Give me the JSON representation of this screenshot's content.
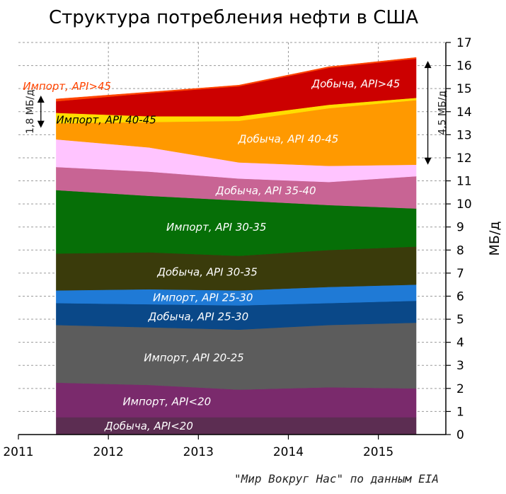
{
  "chart_data": {
    "type": "area",
    "stacked": true,
    "title": "Структура потребления нефти в США",
    "ylabel": "МБ/д",
    "xlabel": "",
    "source_note": "\"Мир Вокруг Нас\" по данным EIA",
    "xlim": [
      2011,
      2015.75
    ],
    "ylim": [
      0,
      17
    ],
    "x_ticks": [
      "2011",
      "2012",
      "2013",
      "2014",
      "2015"
    ],
    "y_ticks": [
      "0",
      "1",
      "2",
      "3",
      "4",
      "5",
      "6",
      "7",
      "8",
      "9",
      "10",
      "11",
      "12",
      "13",
      "14",
      "15",
      "16",
      "17"
    ],
    "grid": true,
    "y_axis_side": "right",
    "x": [
      2011.42,
      2012.45,
      2013.45,
      2014.45,
      2015.42
    ],
    "series": [
      {
        "name": "Добыча, API<20",
        "color": "#5c2d52",
        "values": [
          0.75,
          0.75,
          0.75,
          0.75,
          0.75
        ]
      },
      {
        "name": "Импорт, API<20",
        "color": "#7a2a6c",
        "values": [
          1.5,
          1.4,
          1.2,
          1.3,
          1.25
        ]
      },
      {
        "name": "Импорт, API 20-25",
        "color": "#5c5c5c",
        "values": [
          2.5,
          2.5,
          2.6,
          2.7,
          2.85
        ]
      },
      {
        "name": "Добыча, API 25-30",
        "color": "#0a4888",
        "values": [
          0.95,
          1.0,
          1.05,
          0.95,
          0.95
        ]
      },
      {
        "name": "Импорт, API 25-30",
        "color": "#1f7ad6",
        "values": [
          0.55,
          0.65,
          0.65,
          0.7,
          0.7
        ]
      },
      {
        "name": "Добыча, API 30-35",
        "color": "#3a3b0b",
        "values": [
          1.6,
          1.6,
          1.5,
          1.6,
          1.65
        ]
      },
      {
        "name": "Импорт, API 30-35",
        "color": "#066f07",
        "values": [
          2.75,
          2.45,
          2.4,
          1.95,
          1.65
        ]
      },
      {
        "name": "Добыча, API 35-40",
        "color": "#c86494",
        "values": [
          1.0,
          1.05,
          0.95,
          1.0,
          1.4
        ]
      },
      {
        "name": "",
        "color": "#ffc4ff",
        "values": [
          1.2,
          1.05,
          0.7,
          0.7,
          0.5
        ]
      },
      {
        "name": "Добыча, API 40-45",
        "color": "#ff9900",
        "values": [
          0.7,
          1.1,
          1.8,
          2.5,
          2.8
        ]
      },
      {
        "name": "Импорт, API 40-45",
        "color": "#ffdd00",
        "values": [
          0.45,
          0.25,
          0.2,
          0.15,
          0.1
        ]
      },
      {
        "name": "Добыча, API>45",
        "color": "#cc0000",
        "values": [
          0.5,
          1.0,
          1.3,
          1.6,
          1.7
        ]
      },
      {
        "name": "Импорт, API>45",
        "color": "#ff4400",
        "values": [
          0.1,
          0.05,
          0.05,
          0.05,
          0.05
        ]
      }
    ],
    "series_label_colors": {
      "Импорт, API>45": "#ff4400",
      "Импорт, API 40-45": "#000000",
      "default": "#ffffff"
    },
    "annotations": [
      {
        "text": "1,8 МБ/д",
        "x": 2011.25,
        "y_from": 13.3,
        "y_to": 14.7
      },
      {
        "text": "4,5 МБ/д",
        "x": 2015.55,
        "y_from": 11.7,
        "y_to": 16.2
      }
    ]
  }
}
